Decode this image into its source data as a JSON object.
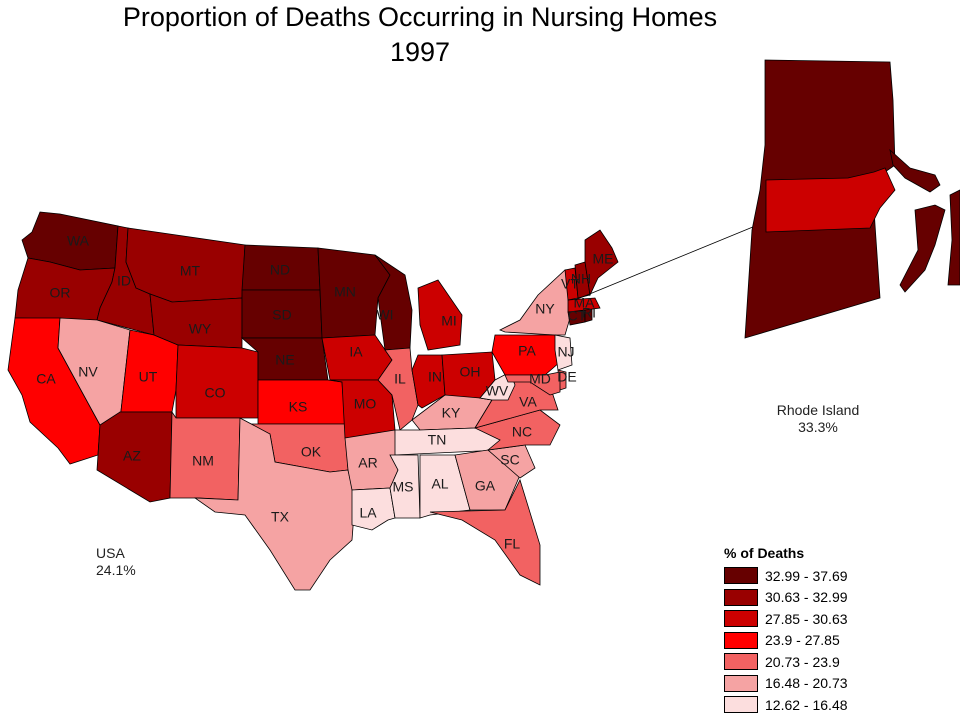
{
  "title_line1": "Proportion of Deaths Occurring in Nursing Homes",
  "title_line2": "1997",
  "ri_note": {
    "name": "Rhode Island",
    "value": "33.3%"
  },
  "usa_note": {
    "name": "USA",
    "value": "24.1%"
  },
  "legend": {
    "title": "% of Deaths",
    "bins": [
      {
        "label": "32.99 - 37.69",
        "color": "#660000"
      },
      {
        "label": "30.63 - 32.99",
        "color": "#990000"
      },
      {
        "label": "27.85 - 30.63",
        "color": "#cc0000"
      },
      {
        "label": "23.9 - 27.85",
        "color": "#ff0000"
      },
      {
        "label": "20.73 - 23.9",
        "color": "#f26262"
      },
      {
        "label": "16.48 - 20.73",
        "color": "#f5a3a3"
      },
      {
        "label": "12.62 - 16.48",
        "color": "#fcdede"
      }
    ]
  },
  "states": [
    {
      "abbr": "WA",
      "bin": 0
    },
    {
      "abbr": "OR",
      "bin": 1
    },
    {
      "abbr": "CA",
      "bin": 3
    },
    {
      "abbr": "ID",
      "bin": 1
    },
    {
      "abbr": "NV",
      "bin": 5
    },
    {
      "abbr": "UT",
      "bin": 3
    },
    {
      "abbr": "AZ",
      "bin": 1
    },
    {
      "abbr": "MT",
      "bin": 1
    },
    {
      "abbr": "WY",
      "bin": 1
    },
    {
      "abbr": "CO",
      "bin": 2
    },
    {
      "abbr": "NM",
      "bin": 4
    },
    {
      "abbr": "ND",
      "bin": 0
    },
    {
      "abbr": "SD",
      "bin": 0
    },
    {
      "abbr": "NE",
      "bin": 0
    },
    {
      "abbr": "KS",
      "bin": 3
    },
    {
      "abbr": "OK",
      "bin": 4
    },
    {
      "abbr": "TX",
      "bin": 5
    },
    {
      "abbr": "MN",
      "bin": 0
    },
    {
      "abbr": "IA",
      "bin": 2
    },
    {
      "abbr": "MO",
      "bin": 2
    },
    {
      "abbr": "AR",
      "bin": 5
    },
    {
      "abbr": "LA",
      "bin": 6
    },
    {
      "abbr": "WI",
      "bin": 0
    },
    {
      "abbr": "IL",
      "bin": 4
    },
    {
      "abbr": "MI",
      "bin": 2
    },
    {
      "abbr": "IN",
      "bin": 2
    },
    {
      "abbr": "OH",
      "bin": 2
    },
    {
      "abbr": "KY",
      "bin": 5
    },
    {
      "abbr": "TN",
      "bin": 6
    },
    {
      "abbr": "MS",
      "bin": 6
    },
    {
      "abbr": "AL",
      "bin": 6
    },
    {
      "abbr": "GA",
      "bin": 5
    },
    {
      "abbr": "FL",
      "bin": 4
    },
    {
      "abbr": "SC",
      "bin": 5
    },
    {
      "abbr": "NC",
      "bin": 4
    },
    {
      "abbr": "VA",
      "bin": 4
    },
    {
      "abbr": "WV",
      "bin": 6
    },
    {
      "abbr": "PA",
      "bin": 3
    },
    {
      "abbr": "NY",
      "bin": 5
    },
    {
      "abbr": "NJ",
      "bin": 6
    },
    {
      "abbr": "DE",
      "bin": 4
    },
    {
      "abbr": "MD",
      "bin": 4
    },
    {
      "abbr": "CT",
      "bin": 0
    },
    {
      "abbr": "RI",
      "bin": 0
    },
    {
      "abbr": "MA",
      "bin": 2
    },
    {
      "abbr": "VT",
      "bin": 2
    },
    {
      "abbr": "NH",
      "bin": 1
    },
    {
      "abbr": "ME",
      "bin": 1
    }
  ]
}
